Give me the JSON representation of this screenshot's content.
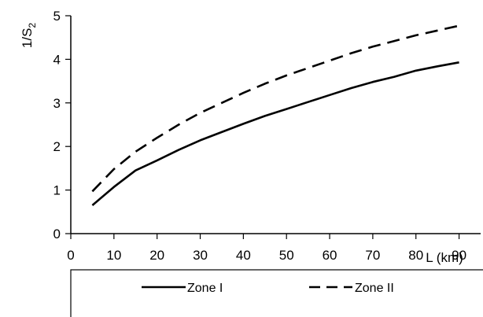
{
  "chart_data": {
    "type": "line",
    "xlabel": "L (km)",
    "ylabel_base": "1/S",
    "ylabel_sub": "2",
    "xlim": [
      0,
      95
    ],
    "ylim": [
      0,
      5
    ],
    "x_ticks": [
      "0",
      "10",
      "20",
      "30",
      "40",
      "50",
      "60",
      "70",
      "80",
      "90"
    ],
    "y_ticks": [
      "0",
      "1",
      "2",
      "3",
      "4",
      "5"
    ],
    "grid": false,
    "legend_position": "bottom",
    "series": [
      {
        "name": "Zone I",
        "style": "solid",
        "color": "#000000",
        "x": [
          5,
          10,
          15,
          20,
          25,
          30,
          35,
          40,
          45,
          50,
          55,
          60,
          65,
          70,
          75,
          80,
          85,
          90
        ],
        "y": [
          0.65,
          1.07,
          1.45,
          1.68,
          1.92,
          2.14,
          2.33,
          2.52,
          2.7,
          2.86,
          3.02,
          3.18,
          3.34,
          3.48,
          3.6,
          3.74,
          3.84,
          3.93
        ]
      },
      {
        "name": "Zone II",
        "style": "dashed",
        "color": "#000000",
        "x": [
          5,
          10,
          15,
          20,
          25,
          30,
          35,
          40,
          45,
          50,
          55,
          60,
          65,
          70,
          75,
          80,
          85,
          90
        ],
        "y": [
          0.97,
          1.48,
          1.88,
          2.2,
          2.5,
          2.77,
          3.0,
          3.23,
          3.44,
          3.63,
          3.8,
          3.97,
          4.14,
          4.29,
          4.42,
          4.55,
          4.66,
          4.77
        ]
      }
    ]
  }
}
